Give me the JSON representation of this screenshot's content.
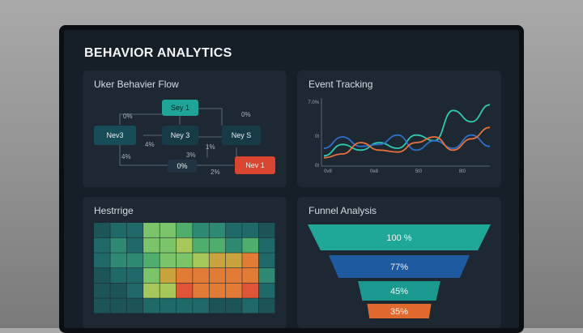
{
  "dashboard": {
    "title": "BEHAVIOR ANALYTICS"
  },
  "flow": {
    "title": "Uker Behavier Flow",
    "nodes": {
      "n1": "Sey 1",
      "n2": "Nev3",
      "n3": "Ney 3",
      "n4": "Ney S",
      "n5": "0%",
      "n6": "Nev 1"
    },
    "labels": {
      "l1": "0%",
      "l2": "0%",
      "l3": "4%",
      "l4": "1%",
      "l5": "4%",
      "l6": "3%",
      "l7": "2%"
    }
  },
  "event": {
    "title": "Event Tracking",
    "colors": {
      "teal": "#2fc9b0",
      "blue": "#2f6fc9",
      "orange": "#e8703a"
    },
    "chart_data": {
      "type": "line",
      "y_tick_labels": [
        "7.0%",
        "0t",
        "0t"
      ],
      "x_tick_labels": [
        "0v8",
        "0e8",
        "5t0",
        "8t0"
      ],
      "series": [
        {
          "color": "teal",
          "values": [
            0.2,
            0.8,
            0.5,
            0.9,
            0.6,
            1.3,
            1.0,
            2.6,
            2.0,
            2.9
          ]
        },
        {
          "color": "blue",
          "values": [
            0.6,
            1.2,
            0.7,
            0.8,
            1.3,
            0.5,
            1.0,
            0.6,
            1.3,
            0.7
          ]
        },
        {
          "color": "orange",
          "values": [
            0.1,
            0.3,
            0.9,
            0.5,
            0.4,
            0.9,
            1.2,
            0.5,
            1.1,
            1.7
          ]
        }
      ]
    }
  },
  "heatmap": {
    "title": "Hestrrige",
    "colors": [
      "#1c5457",
      "#1f6a68",
      "#2e8a72",
      "#4fae6c",
      "#7cc46a",
      "#a6c85a",
      "#c9a43e",
      "#e27b36",
      "#e0553a"
    ],
    "chart_data": {
      "type": "heatmap",
      "rows": 6,
      "cols": 11,
      "values": [
        [
          0,
          1,
          1,
          4,
          4,
          3,
          2,
          2,
          1,
          1,
          0
        ],
        [
          1,
          2,
          1,
          4,
          4,
          5,
          3,
          3,
          2,
          3,
          1
        ],
        [
          1,
          2,
          2,
          3,
          4,
          4,
          5,
          6,
          6,
          7,
          1
        ],
        [
          0,
          1,
          1,
          4,
          6,
          7,
          7,
          7,
          7,
          7,
          2
        ],
        [
          0,
          0,
          1,
          5,
          5,
          8,
          7,
          7,
          7,
          8,
          1
        ],
        [
          0,
          0,
          0,
          1,
          1,
          1,
          1,
          0,
          0,
          1,
          0
        ]
      ]
    }
  },
  "funnel": {
    "title": "Funnel Analysis",
    "chart_data": {
      "type": "funnel",
      "stages": [
        {
          "label": "100 %",
          "value": 100,
          "color": "#1fa898"
        },
        {
          "label": "77%",
          "value": 77,
          "color": "#1d5aa0"
        },
        {
          "label": "45%",
          "value": 45,
          "color": "#1a9a8e"
        },
        {
          "label": "35%",
          "value": 35,
          "color": "#e06a2e"
        }
      ]
    }
  }
}
